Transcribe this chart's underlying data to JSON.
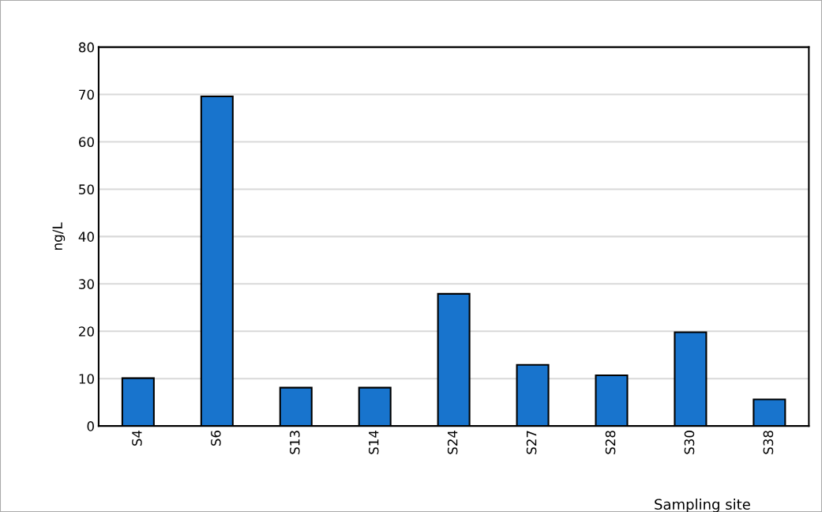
{
  "chart_data": {
    "type": "bar",
    "xlabel": "Sampling site",
    "ylabel": "ng/L",
    "categories": [
      "S4",
      "S6",
      "S13",
      "S14",
      "S24",
      "S27",
      "S28",
      "S30",
      "S38"
    ],
    "values": [
      10.1,
      69.6,
      8.1,
      8.1,
      27.9,
      12.9,
      10.7,
      19.8,
      5.6
    ],
    "color": "#1874cd",
    "ylim": [
      0,
      80
    ],
    "yticks": [
      0,
      10,
      20,
      30,
      40,
      50,
      60,
      70,
      80
    ],
    "grid": "y"
  }
}
